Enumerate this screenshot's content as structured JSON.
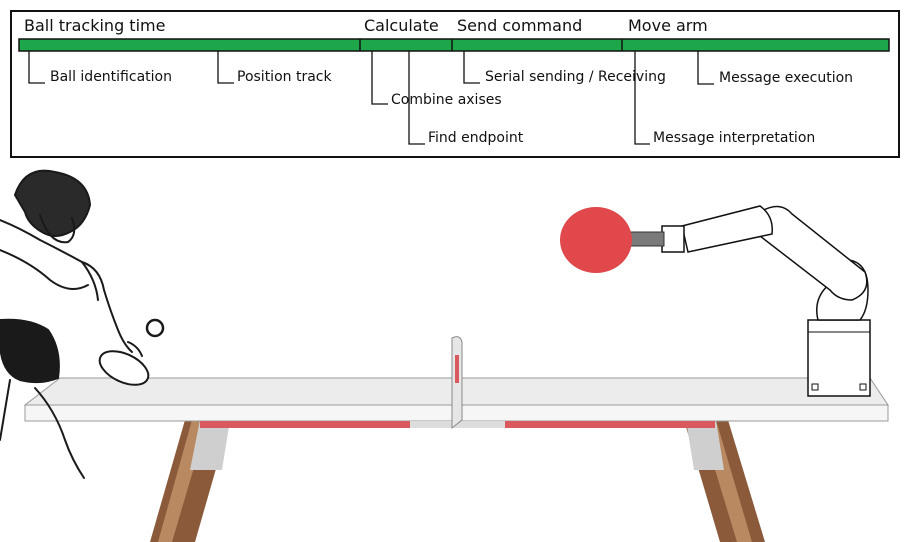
{
  "timeline": {
    "phases": {
      "ball_tracking": "Ball tracking time",
      "calculate": "Calculate",
      "send_command": "Send command",
      "move_arm": "Move arm"
    },
    "steps": {
      "ball_identification": "Ball identification",
      "position_track": "Position track",
      "combine_axises": "Combine axises",
      "find_endpoint": "Find endpoint",
      "serial_sending_receiving": "Serial sending / Receiving",
      "message_interpretation": "Message interpretation",
      "message_execution": "Message execution"
    },
    "bar_color": "#1ea64a"
  },
  "illustration": {
    "paddle_color": "#e0484c",
    "table_stripe_color": "#d9595e",
    "leg_wood_color": "#8a5a3a"
  }
}
